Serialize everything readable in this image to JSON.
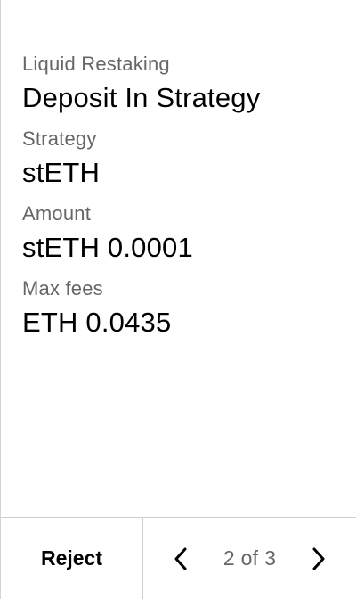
{
  "fields": [
    {
      "label": "Liquid Restaking",
      "value": "Deposit In Strategy"
    },
    {
      "label": "Strategy",
      "value": "stETH"
    },
    {
      "label": "Amount",
      "value": "stETH 0.0001"
    },
    {
      "label": "Max fees",
      "value": "ETH 0.0435"
    }
  ],
  "footer": {
    "reject_label": "Reject",
    "page_indicator": "2 of 3",
    "prev_icon": "chevron-left-icon",
    "next_icon": "chevron-right-icon"
  },
  "colors": {
    "label": "#666666",
    "value": "#000000",
    "divider": "#cfcfcf"
  }
}
